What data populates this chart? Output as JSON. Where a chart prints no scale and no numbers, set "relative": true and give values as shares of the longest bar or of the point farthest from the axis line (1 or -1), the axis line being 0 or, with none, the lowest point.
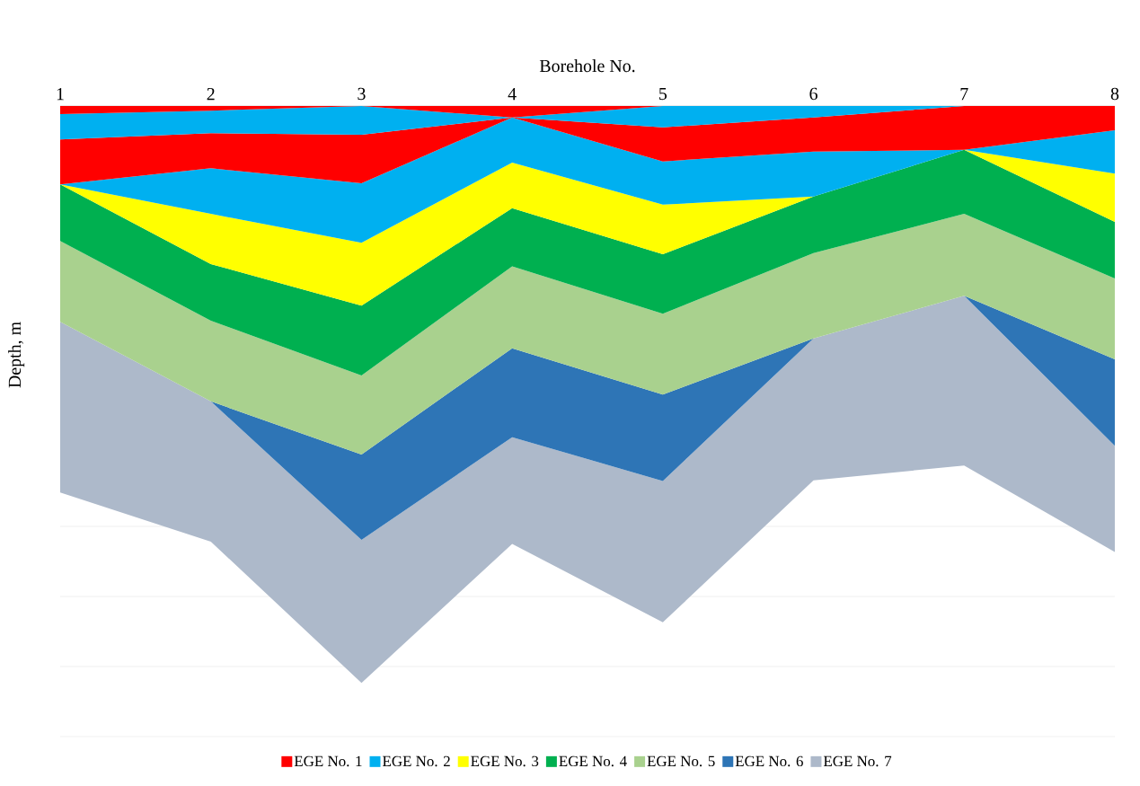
{
  "chart_data": {
    "type": "area",
    "stacked": true,
    "relative": true,
    "xlabel": "Borehole No.",
    "ylabel": "Depth, m",
    "categories": [
      "1",
      "2",
      "3",
      "4",
      "5",
      "6",
      "7",
      "8"
    ],
    "series": [
      {
        "name": "EGE No. 1",
        "color": "#ff0000",
        "values": [
          -0.014,
          -0.008,
          0,
          -0.02,
          0,
          0,
          0,
          0
        ]
      },
      {
        "name": "EGE No. 2",
        "color": "#00b0f0",
        "values": [
          -0.044,
          -0.039,
          -0.05,
          0,
          -0.037,
          -0.02,
          0,
          0
        ]
      },
      {
        "color": "#ff0000",
        "values": [
          -0.078,
          -0.061,
          -0.084,
          0,
          -0.059,
          -0.059,
          -0.076,
          -0.042
        ]
      },
      {
        "color": "#00b0f0",
        "values": [
          0,
          -0.079,
          -0.103,
          -0.078,
          -0.075,
          -0.078,
          0,
          -0.075
        ]
      },
      {
        "name": "EGE No. 3",
        "color": "#ffff00",
        "values": [
          0,
          -0.087,
          -0.109,
          -0.079,
          -0.086,
          0,
          0,
          -0.084
        ]
      },
      {
        "name": "EGE No. 4",
        "color": "#00b050",
        "values": [
          -0.098,
          -0.098,
          -0.121,
          -0.101,
          -0.103,
          -0.098,
          -0.111,
          -0.098
        ]
      },
      {
        "name": "EGE No. 5",
        "color": "#a9d18e",
        "values": [
          -0.14,
          -0.14,
          -0.137,
          -0.142,
          -0.14,
          -0.148,
          -0.142,
          -0.14
        ]
      },
      {
        "name": "EGE No. 6",
        "color": "#2e75b6",
        "values": [
          0,
          0,
          -0.148,
          -0.154,
          -0.15,
          0,
          0,
          -0.15
        ]
      },
      {
        "name": "EGE No. 7",
        "color": "#adb9ca",
        "values": [
          -0.296,
          -0.243,
          -0.248,
          -0.185,
          -0.245,
          -0.246,
          -0.294,
          -0.184
        ]
      }
    ],
    "grid": "y",
    "legend": "bottom"
  }
}
